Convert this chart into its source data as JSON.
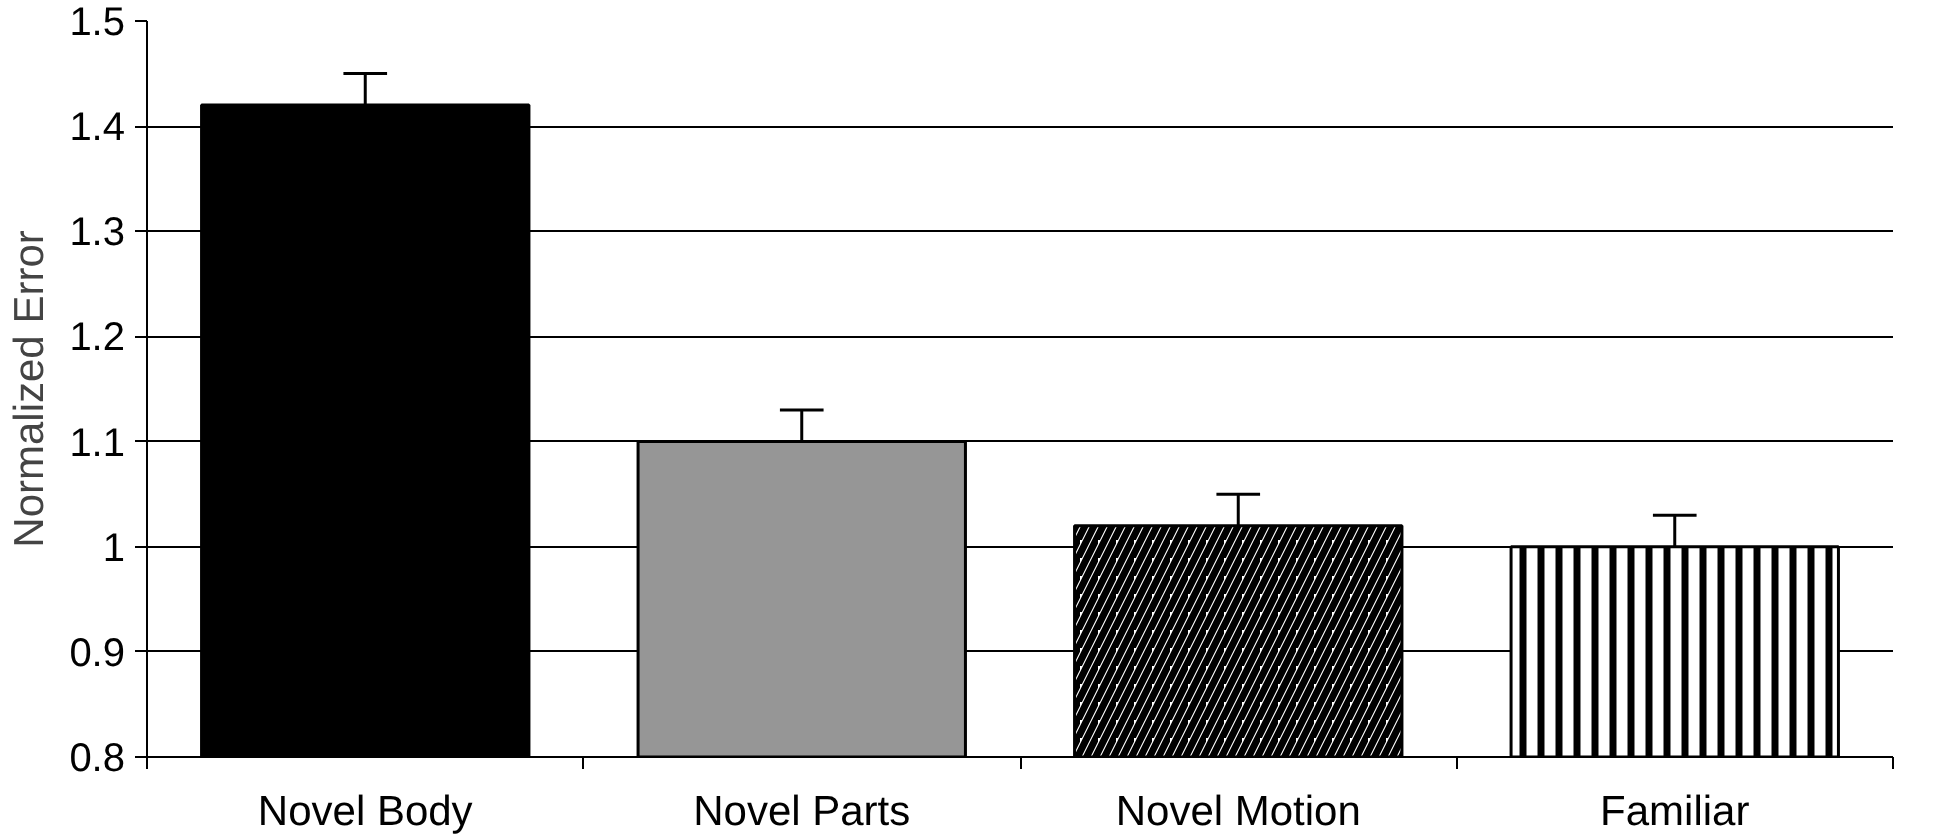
{
  "chart_data": {
    "type": "bar",
    "ylabel": "Normalized Error",
    "categories": [
      "Novel Body",
      "Novel Parts",
      "Novel Motion",
      "Familiar"
    ],
    "values": [
      1.42,
      1.1,
      1.02,
      1.0
    ],
    "colors": [
      "#000000",
      "#969696",
      "#ffffff",
      "#ffffff"
    ],
    "errors": [
      [
        1.42,
        1.45
      ],
      [
        1.1,
        1.13
      ],
      [
        1.02,
        1.05
      ],
      [
        1.0,
        1.03
      ]
    ],
    "ylim": [
      0.8,
      1.5
    ],
    "yticks": [
      0.8,
      0.9,
      1,
      1.1,
      1.2,
      1.3,
      1.4,
      1.5
    ],
    "grid": "y"
  }
}
